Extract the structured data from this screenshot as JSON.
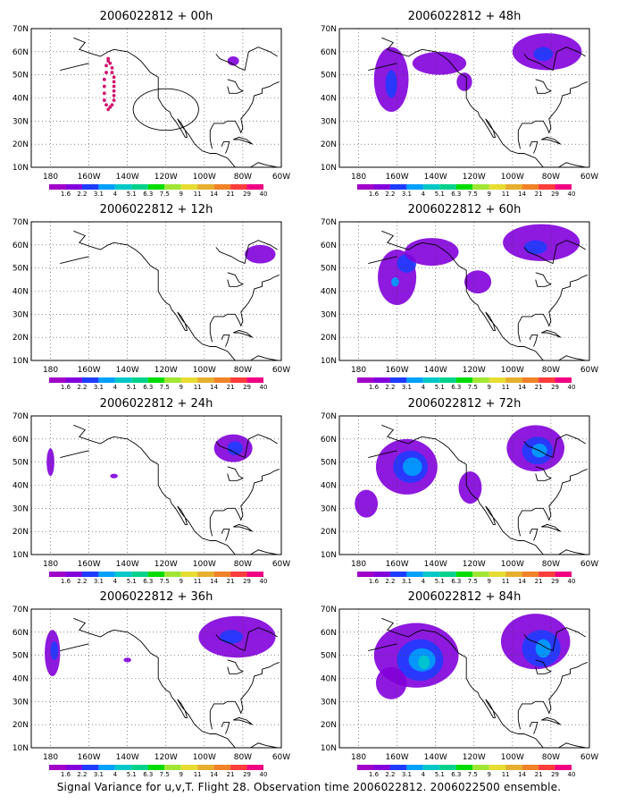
{
  "panels": [
    {
      "title": "2006022812 + 00h",
      "has_dots": true,
      "has_circle": true,
      "blobs": [
        {
          "lon": -85,
          "lat": 56,
          "rx": 3,
          "ry": 2,
          "level": 1
        }
      ]
    },
    {
      "title": "2006022812 + 48h",
      "has_dots": false,
      "has_circle": false,
      "blobs": [
        {
          "lon": -163,
          "lat": 48,
          "rx": 9,
          "ry": 14,
          "level": 1
        },
        {
          "lon": -163,
          "lat": 46,
          "rx": 3,
          "ry": 6,
          "level": 2
        },
        {
          "lon": -138,
          "lat": 55,
          "rx": 14,
          "ry": 5,
          "level": 1
        },
        {
          "lon": -125,
          "lat": 47,
          "rx": 4,
          "ry": 4,
          "level": 1
        },
        {
          "lon": -82,
          "lat": 60,
          "rx": 18,
          "ry": 8,
          "level": 1
        },
        {
          "lon": -84,
          "lat": 59,
          "rx": 5,
          "ry": 3,
          "level": 2
        }
      ]
    },
    {
      "title": "2006022812 + 12h",
      "has_dots": false,
      "has_circle": false,
      "blobs": [
        {
          "lon": -71,
          "lat": 56,
          "rx": 8,
          "ry": 4,
          "level": 1
        }
      ]
    },
    {
      "title": "2006022812 + 60h",
      "has_dots": false,
      "has_circle": false,
      "blobs": [
        {
          "lon": -160,
          "lat": 46,
          "rx": 10,
          "ry": 12,
          "level": 1
        },
        {
          "lon": -155,
          "lat": 52,
          "rx": 5,
          "ry": 4,
          "level": 2
        },
        {
          "lon": -161,
          "lat": 44,
          "rx": 2,
          "ry": 2,
          "level": 3
        },
        {
          "lon": -142,
          "lat": 57,
          "rx": 14,
          "ry": 6,
          "level": 1
        },
        {
          "lon": -118,
          "lat": 44,
          "rx": 7,
          "ry": 5,
          "level": 1
        },
        {
          "lon": -85,
          "lat": 61,
          "rx": 20,
          "ry": 8,
          "level": 1
        },
        {
          "lon": -88,
          "lat": 59,
          "rx": 6,
          "ry": 3,
          "level": 2
        }
      ]
    },
    {
      "title": "2006022812 + 24h",
      "has_dots": false,
      "has_circle": false,
      "blobs": [
        {
          "lon": -180,
          "lat": 50,
          "rx": 2,
          "ry": 6,
          "level": 1
        },
        {
          "lon": -147,
          "lat": 44,
          "rx": 2,
          "ry": 1,
          "level": 1
        },
        {
          "lon": -85,
          "lat": 56,
          "rx": 10,
          "ry": 6,
          "level": 1
        },
        {
          "lon": -84,
          "lat": 56,
          "rx": 4,
          "ry": 3,
          "level": 2
        }
      ]
    },
    {
      "title": "2006022812 + 72h",
      "has_dots": false,
      "has_circle": false,
      "blobs": [
        {
          "lon": -155,
          "lat": 48,
          "rx": 16,
          "ry": 12,
          "level": 1
        },
        {
          "lon": -153,
          "lat": 48,
          "rx": 9,
          "ry": 7,
          "level": 2
        },
        {
          "lon": -152,
          "lat": 48,
          "rx": 5,
          "ry": 4,
          "level": 3
        },
        {
          "lon": -176,
          "lat": 32,
          "rx": 6,
          "ry": 6,
          "level": 1
        },
        {
          "lon": -122,
          "lat": 39,
          "rx": 6,
          "ry": 7,
          "level": 1
        },
        {
          "lon": -88,
          "lat": 56,
          "rx": 15,
          "ry": 10,
          "level": 1
        },
        {
          "lon": -87,
          "lat": 55,
          "rx": 8,
          "ry": 6,
          "level": 2
        },
        {
          "lon": -86,
          "lat": 55,
          "rx": 4,
          "ry": 3,
          "level": 3
        }
      ]
    },
    {
      "title": "2006022812 + 36h",
      "has_dots": false,
      "has_circle": false,
      "blobs": [
        {
          "lon": -179,
          "lat": 51,
          "rx": 4,
          "ry": 10,
          "level": 1
        },
        {
          "lon": -178,
          "lat": 52,
          "rx": 2,
          "ry": 4,
          "level": 2
        },
        {
          "lon": -140,
          "lat": 48,
          "rx": 2,
          "ry": 1,
          "level": 1
        },
        {
          "lon": -83,
          "lat": 58,
          "rx": 20,
          "ry": 9,
          "level": 1
        },
        {
          "lon": -86,
          "lat": 58,
          "rx": 6,
          "ry": 3,
          "level": 2
        }
      ]
    },
    {
      "title": "2006022812 + 84h",
      "has_dots": false,
      "has_circle": false,
      "blobs": [
        {
          "lon": -150,
          "lat": 50,
          "rx": 22,
          "ry": 14,
          "level": 1
        },
        {
          "lon": -148,
          "lat": 48,
          "rx": 12,
          "ry": 9,
          "level": 2
        },
        {
          "lon": -147,
          "lat": 48,
          "rx": 7,
          "ry": 5,
          "level": 3
        },
        {
          "lon": -146,
          "lat": 47,
          "rx": 3,
          "ry": 3,
          "level": 4
        },
        {
          "lon": -163,
          "lat": 38,
          "rx": 8,
          "ry": 7,
          "level": 1
        },
        {
          "lon": -88,
          "lat": 56,
          "rx": 18,
          "ry": 12,
          "level": 1
        },
        {
          "lon": -85,
          "lat": 53,
          "rx": 10,
          "ry": 8,
          "level": 2
        },
        {
          "lon": -84,
          "lat": 53,
          "rx": 4,
          "ry": 4,
          "level": 3
        }
      ]
    }
  ],
  "map": {
    "lon_range": [
      -190,
      -60
    ],
    "lat_range": [
      10,
      70
    ],
    "lon_ticks": [
      -180,
      -160,
      -140,
      -120,
      -100,
      -80,
      -60
    ],
    "lon_tick_labels": [
      "180",
      "160W",
      "140W",
      "120W",
      "100W",
      "80W",
      "60W"
    ],
    "lat_ticks": [
      10,
      20,
      30,
      40,
      50,
      60,
      70
    ],
    "lat_tick_labels": [
      "10N",
      "20N",
      "30N",
      "40N",
      "50N",
      "60N",
      "70N"
    ],
    "grid": "dotted"
  },
  "colorbar": {
    "labels": [
      "1.6",
      "2.2",
      "3.1",
      "4",
      "5.1",
      "6.3",
      "7.5",
      "9",
      "11",
      "14",
      "21",
      "29",
      "40"
    ],
    "colors": [
      "#a000c8",
      "#8200dc",
      "#1e3cff",
      "#00a0ff",
      "#00c8c8",
      "#00d28c",
      "#00dc00",
      "#a0e632",
      "#e6dc32",
      "#e6af2d",
      "#f08228",
      "#fa3c3c",
      "#f00082"
    ]
  },
  "dots": [
    [
      -150,
      57
    ],
    [
      -149,
      55
    ],
    [
      -148,
      53
    ],
    [
      -148,
      51
    ],
    [
      -147,
      49
    ],
    [
      -147,
      47
    ],
    [
      -147,
      45
    ],
    [
      -147,
      43
    ],
    [
      -147,
      41
    ],
    [
      -147,
      39
    ],
    [
      -148,
      37
    ],
    [
      -149,
      36
    ],
    [
      -150,
      35
    ],
    [
      -151,
      37
    ],
    [
      -152,
      39
    ],
    [
      -152,
      42
    ],
    [
      -152,
      45
    ],
    [
      -152,
      48
    ],
    [
      -151,
      51
    ],
    [
      -151,
      54
    ],
    [
      -150,
      56
    ]
  ],
  "circle": {
    "lon": -120,
    "lat": 35,
    "radius_deg": 10
  },
  "caption": "Signal Variance for u,v,T. Flight 28. Observation time 2006022812. 2006022500 ensemble."
}
